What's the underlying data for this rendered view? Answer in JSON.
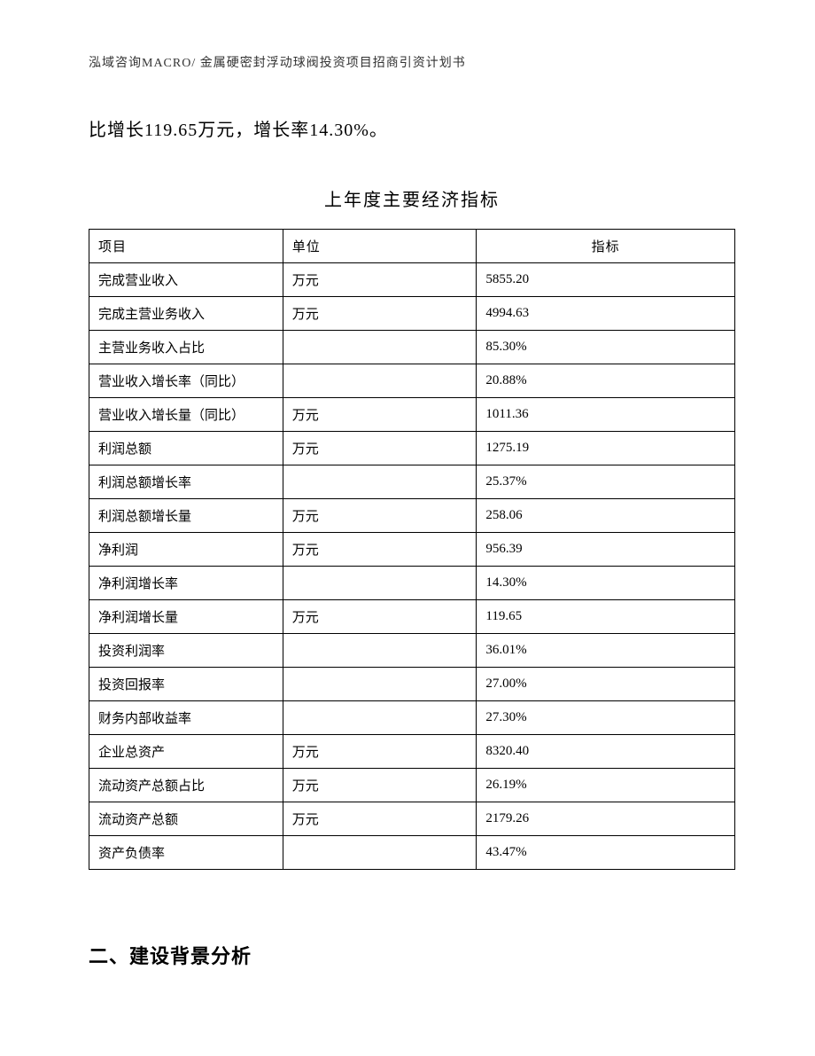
{
  "header": {
    "text": "泓域咨询MACRO/ 金属硬密封浮动球阀投资项目招商引资计划书"
  },
  "body_paragraph": "比增长119.65万元，增长率14.30%。",
  "table": {
    "title": "上年度主要经济指标",
    "columns": [
      "项目",
      "单位",
      "指标"
    ],
    "rows": [
      [
        "完成营业收入",
        "万元",
        "5855.20"
      ],
      [
        "完成主营业务收入",
        "万元",
        "4994.63"
      ],
      [
        "主营业务收入占比",
        "",
        "85.30%"
      ],
      [
        "营业收入增长率（同比）",
        "",
        "20.88%"
      ],
      [
        "营业收入增长量（同比）",
        "万元",
        "1011.36"
      ],
      [
        "利润总额",
        "万元",
        "1275.19"
      ],
      [
        "利润总额增长率",
        "",
        "25.37%"
      ],
      [
        "利润总额增长量",
        "万元",
        "258.06"
      ],
      [
        "净利润",
        "万元",
        "956.39"
      ],
      [
        "净利润增长率",
        "",
        "14.30%"
      ],
      [
        "净利润增长量",
        "万元",
        "119.65"
      ],
      [
        "投资利润率",
        "",
        "36.01%"
      ],
      [
        "投资回报率",
        "",
        "27.00%"
      ],
      [
        "财务内部收益率",
        "",
        "27.30%"
      ],
      [
        "企业总资产",
        "万元",
        "8320.40"
      ],
      [
        "流动资产总额占比",
        "万元",
        "26.19%"
      ],
      [
        "流动资产总额",
        "万元",
        "2179.26"
      ],
      [
        "资产负债率",
        "",
        "43.47%"
      ]
    ]
  },
  "section_heading": "二、建设背景分析",
  "style": {
    "page_bg": "#ffffff",
    "text_color": "#000000",
    "header_color": "#333333",
    "border_color": "#000000",
    "header_fontsize": 14,
    "body_fontsize": 20,
    "table_title_fontsize": 20,
    "table_cell_fontsize": 15,
    "heading_fontsize": 22,
    "col_widths": [
      "30%",
      "30%",
      "40%"
    ]
  }
}
